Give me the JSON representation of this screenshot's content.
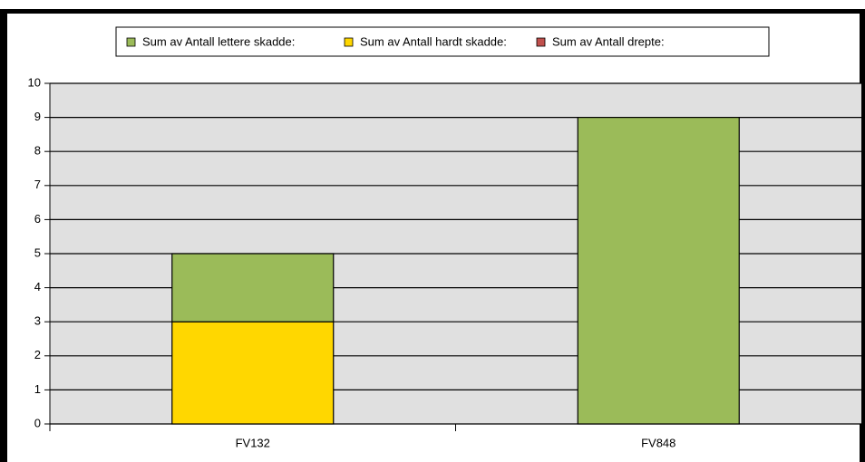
{
  "chart_data": {
    "type": "stacked_bar",
    "categories": [
      "FV132",
      "FV848"
    ],
    "series": [
      {
        "name": "Sum av Antall lettere skadde:",
        "color": "#9bbb59",
        "values": [
          2,
          9
        ]
      },
      {
        "name": "Sum av Antall hardt skadde:",
        "color": "#ffd700",
        "values": [
          3,
          0
        ]
      },
      {
        "name": "Sum av Antall drepte:",
        "color": "#c0504d",
        "values": [
          0,
          0
        ]
      }
    ],
    "ylim": [
      0,
      10
    ],
    "yticks": [
      0,
      1,
      2,
      3,
      4,
      5,
      6,
      7,
      8,
      9,
      10
    ],
    "grid": true,
    "legend": "top"
  }
}
